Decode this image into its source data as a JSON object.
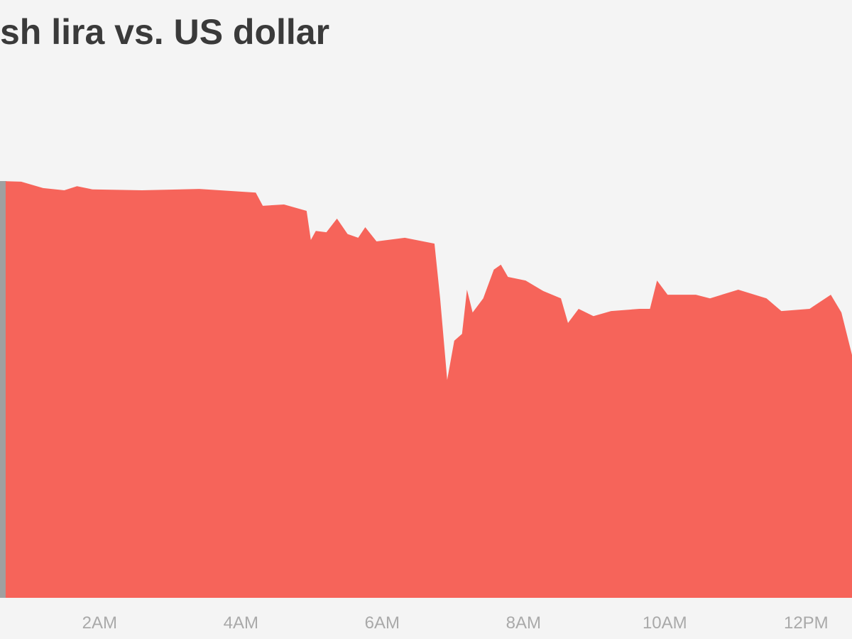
{
  "chart_data": {
    "type": "area",
    "title": "sh lira vs. US dollar",
    "x": [
      0.67,
      0.89,
      1.2,
      1.5,
      1.68,
      1.9,
      2.6,
      3.41,
      4.21,
      4.31,
      4.61,
      4.93,
      4.99,
      5.06,
      5.21,
      5.36,
      5.51,
      5.66,
      5.76,
      5.92,
      6.32,
      6.74,
      6.82,
      6.92,
      7.02,
      7.13,
      7.2,
      7.28,
      7.43,
      7.58,
      7.68,
      7.78,
      8.03,
      8.28,
      8.53,
      8.63,
      8.78,
      8.99,
      9.24,
      9.64,
      9.79,
      9.89,
      10.04,
      10.44,
      10.64,
      11.04,
      11.44,
      11.65,
      12.05,
      12.35,
      12.5,
      12.65
    ],
    "values": [
      91.4,
      91.3,
      89.9,
      89.4,
      90.3,
      89.6,
      89.4,
      89.7,
      88.9,
      86.0,
      86.3,
      84.9,
      78.5,
      80.5,
      80.2,
      83.2,
      79.8,
      79.0,
      81.3,
      78.2,
      79.0,
      77.7,
      65.7,
      47.8,
      56.4,
      57.9,
      67.6,
      62.6,
      65.7,
      72.0,
      73.1,
      70.4,
      69.6,
      67.3,
      65.7,
      60.3,
      63.4,
      61.8,
      62.9,
      63.4,
      63.4,
      69.6,
      66.5,
      66.5,
      65.7,
      67.6,
      65.7,
      62.9,
      63.4,
      66.5,
      62.6,
      53.3
    ],
    "color": "#f6645a",
    "xlim": [
      0.59,
      12.65
    ],
    "xticks": [
      {
        "value": 2,
        "label": "2AM"
      },
      {
        "value": 4,
        "label": "4AM"
      },
      {
        "value": 6,
        "label": "6AM"
      },
      {
        "value": 8,
        "label": "8AM"
      },
      {
        "value": 10,
        "label": "10AM"
      },
      {
        "value": 12,
        "label": "12PM"
      }
    ],
    "ylim": [
      0,
      100
    ]
  }
}
